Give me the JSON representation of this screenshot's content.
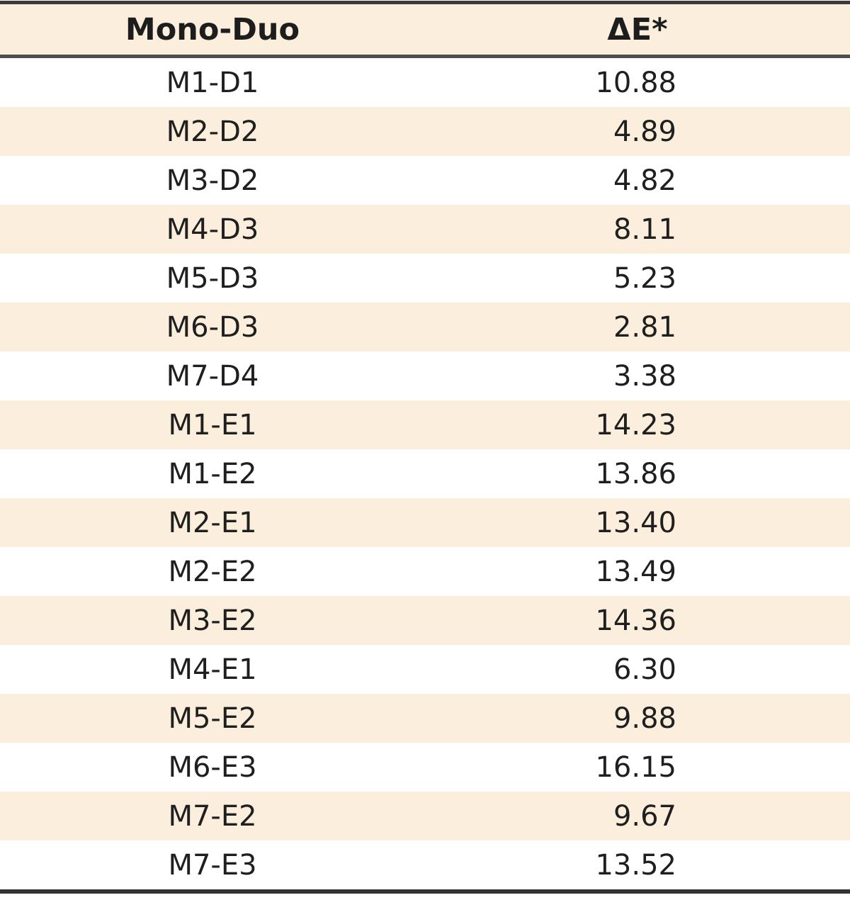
{
  "table": {
    "columns": [
      "Mono-Duo",
      "ΔE*"
    ],
    "rows": [
      [
        "M1-D1",
        "10.88"
      ],
      [
        "M2-D2",
        "4.89"
      ],
      [
        "M3-D2",
        "4.82"
      ],
      [
        "M4-D3",
        "8.11"
      ],
      [
        "M5-D3",
        "5.23"
      ],
      [
        "M6-D3",
        "2.81"
      ],
      [
        "M7-D4",
        "3.38"
      ],
      [
        "M1-E1",
        "14.23"
      ],
      [
        "M1-E2",
        "13.86"
      ],
      [
        "M2-E1",
        "13.40"
      ],
      [
        "M2-E2",
        "13.49"
      ],
      [
        "M3-E2",
        "14.36"
      ],
      [
        "M4-E1",
        "6.30"
      ],
      [
        "M5-E2",
        "9.88"
      ],
      [
        "M6-E3",
        "16.15"
      ],
      [
        "M7-E2",
        "9.67"
      ],
      [
        "M7-E3",
        "13.52"
      ]
    ]
  },
  "chart_data": {
    "type": "table",
    "title": "",
    "columns": [
      "Mono-Duo",
      "ΔE*"
    ],
    "rows": [
      {
        "pair": "M1-D1",
        "delta_e": 10.88
      },
      {
        "pair": "M2-D2",
        "delta_e": 4.89
      },
      {
        "pair": "M3-D2",
        "delta_e": 4.82
      },
      {
        "pair": "M4-D3",
        "delta_e": 8.11
      },
      {
        "pair": "M5-D3",
        "delta_e": 5.23
      },
      {
        "pair": "M6-D3",
        "delta_e": 2.81
      },
      {
        "pair": "M7-D4",
        "delta_e": 3.38
      },
      {
        "pair": "M1-E1",
        "delta_e": 14.23
      },
      {
        "pair": "M1-E2",
        "delta_e": 13.86
      },
      {
        "pair": "M2-E1",
        "delta_e": 13.4
      },
      {
        "pair": "M2-E2",
        "delta_e": 13.49
      },
      {
        "pair": "M3-E2",
        "delta_e": 14.36
      },
      {
        "pair": "M4-E1",
        "delta_e": 6.3
      },
      {
        "pair": "M5-E2",
        "delta_e": 9.88
      },
      {
        "pair": "M6-E3",
        "delta_e": 16.15
      },
      {
        "pair": "M7-E2",
        "delta_e": 9.67
      },
      {
        "pair": "M7-E3",
        "delta_e": 13.52
      }
    ]
  },
  "colors": {
    "stripe_background": "#fbeedc",
    "row_background": "#ffffff",
    "rule_dark": "#3a3a3a",
    "text": "#1f1f1f"
  }
}
